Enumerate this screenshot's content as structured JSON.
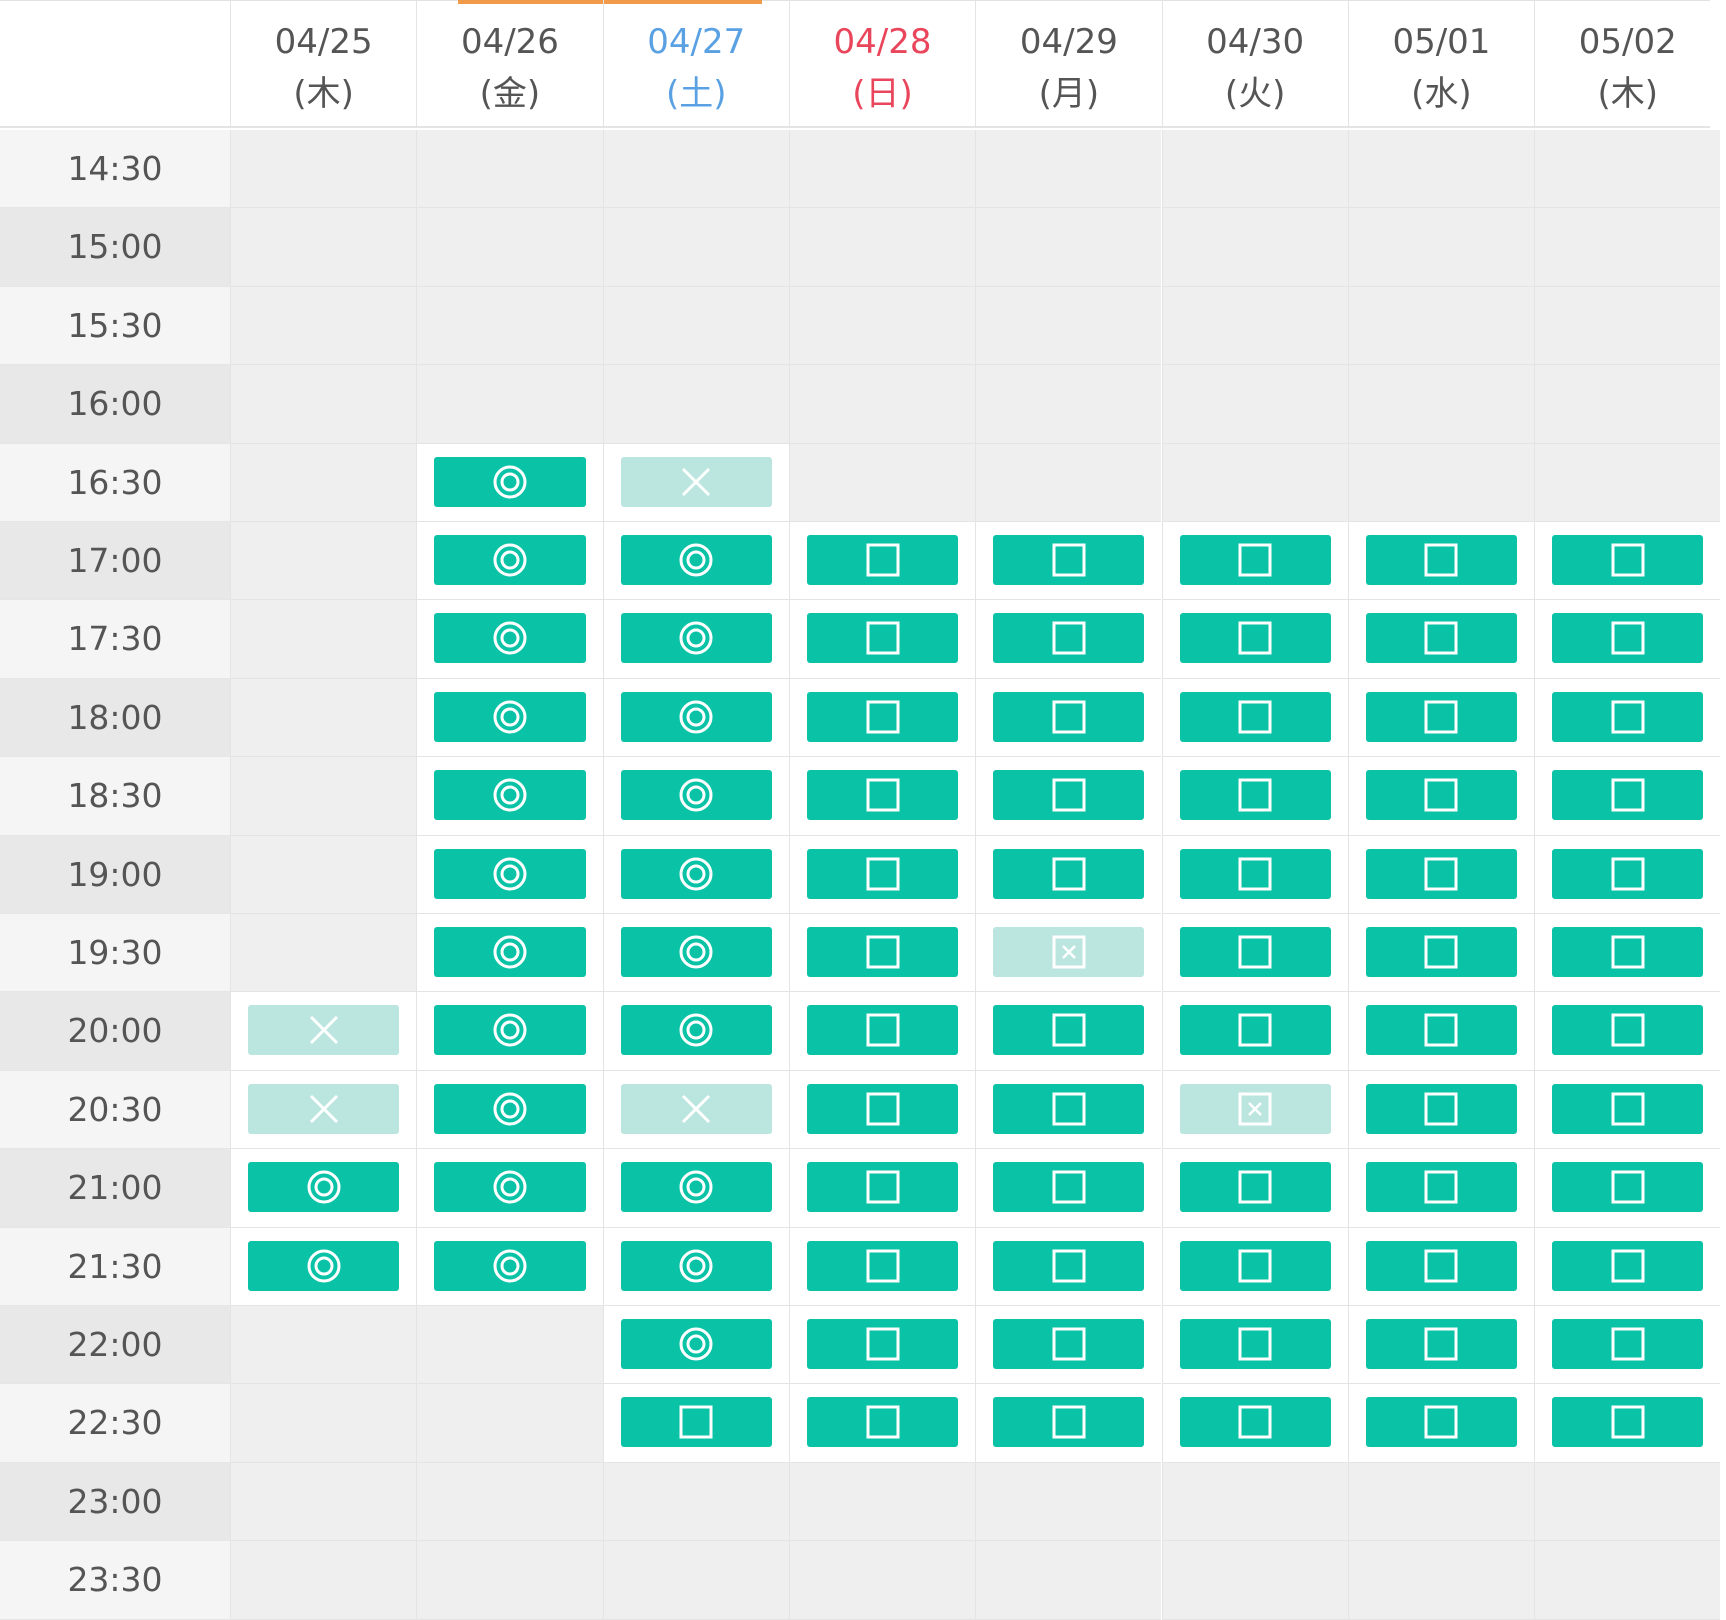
{
  "columns": [
    {
      "date": "04/25",
      "dow": "(木)",
      "day_type": "weekday"
    },
    {
      "date": "04/26",
      "dow": "(金)",
      "day_type": "weekday"
    },
    {
      "date": "04/27",
      "dow": "(土)",
      "day_type": "saturday"
    },
    {
      "date": "04/28",
      "dow": "(日)",
      "day_type": "sunday"
    },
    {
      "date": "04/29",
      "dow": "(月)",
      "day_type": "weekday"
    },
    {
      "date": "04/30",
      "dow": "(火)",
      "day_type": "weekday"
    },
    {
      "date": "05/01",
      "dow": "(水)",
      "day_type": "weekday"
    },
    {
      "date": "05/02",
      "dow": "(木)",
      "day_type": "weekday"
    }
  ],
  "legend": {
    "D": "double-circle-icon",
    "S": "square-icon",
    "X": "cross-icon",
    "B": "boxed-cross-icon",
    "": "empty"
  },
  "colors": {
    "available": "#0ac3a6",
    "unavailable": "#bbe6df",
    "saturday": "#5aa1e3",
    "sunday": "#e9455b",
    "accent": "#f09a4a"
  },
  "rows": [
    {
      "time": "14:30",
      "slots": [
        "",
        "",
        "",
        "",
        "",
        "",
        "",
        ""
      ]
    },
    {
      "time": "15:00",
      "slots": [
        "",
        "",
        "",
        "",
        "",
        "",
        "",
        ""
      ]
    },
    {
      "time": "15:30",
      "slots": [
        "",
        "",
        "",
        "",
        "",
        "",
        "",
        ""
      ]
    },
    {
      "time": "16:00",
      "slots": [
        "",
        "",
        "",
        "",
        "",
        "",
        "",
        ""
      ]
    },
    {
      "time": "16:30",
      "slots": [
        "",
        "D",
        "X",
        "",
        "",
        "",
        "",
        ""
      ]
    },
    {
      "time": "17:00",
      "slots": [
        "",
        "D",
        "D",
        "S",
        "S",
        "S",
        "S",
        "S"
      ]
    },
    {
      "time": "17:30",
      "slots": [
        "",
        "D",
        "D",
        "S",
        "S",
        "S",
        "S",
        "S"
      ]
    },
    {
      "time": "18:00",
      "slots": [
        "",
        "D",
        "D",
        "S",
        "S",
        "S",
        "S",
        "S"
      ]
    },
    {
      "time": "18:30",
      "slots": [
        "",
        "D",
        "D",
        "S",
        "S",
        "S",
        "S",
        "S"
      ]
    },
    {
      "time": "19:00",
      "slots": [
        "",
        "D",
        "D",
        "S",
        "S",
        "S",
        "S",
        "S"
      ]
    },
    {
      "time": "19:30",
      "slots": [
        "",
        "D",
        "D",
        "S",
        "B",
        "S",
        "S",
        "S"
      ]
    },
    {
      "time": "20:00",
      "slots": [
        "X",
        "D",
        "D",
        "S",
        "S",
        "S",
        "S",
        "S"
      ]
    },
    {
      "time": "20:30",
      "slots": [
        "X",
        "D",
        "X",
        "S",
        "S",
        "B",
        "S",
        "S"
      ]
    },
    {
      "time": "21:00",
      "slots": [
        "D",
        "D",
        "D",
        "S",
        "S",
        "S",
        "S",
        "S"
      ]
    },
    {
      "time": "21:30",
      "slots": [
        "D",
        "D",
        "D",
        "S",
        "S",
        "S",
        "S",
        "S"
      ]
    },
    {
      "time": "22:00",
      "slots": [
        "",
        "",
        "D",
        "S",
        "S",
        "S",
        "S",
        "S"
      ]
    },
    {
      "time": "22:30",
      "slots": [
        "",
        "",
        "S",
        "S",
        "S",
        "S",
        "S",
        "S"
      ]
    },
    {
      "time": "23:00",
      "slots": [
        "",
        "",
        "",
        "",
        "",
        "",
        "",
        ""
      ]
    },
    {
      "time": "23:30",
      "slots": [
        "",
        "",
        "",
        "",
        "",
        "",
        "",
        ""
      ]
    }
  ]
}
